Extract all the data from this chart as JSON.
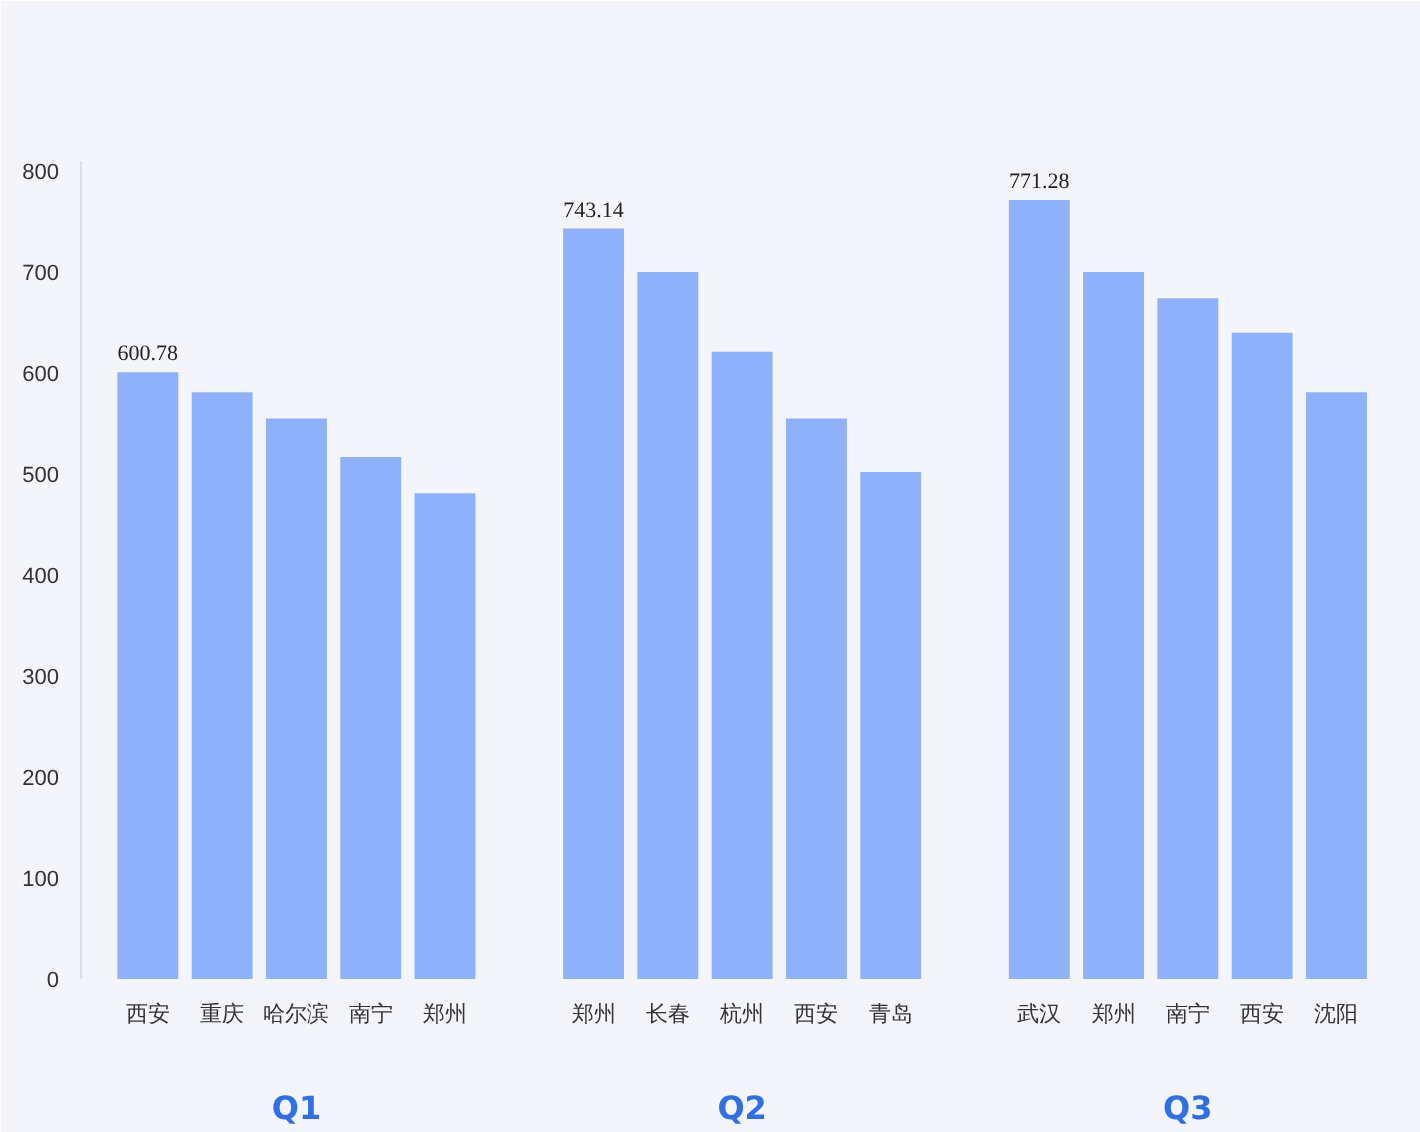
{
  "chart_data": {
    "type": "bar",
    "categories": [
      "西安",
      "重庆",
      "哈尔滨",
      "南宁",
      "郑州",
      null,
      "郑州",
      "长春",
      "杭州",
      "西安",
      "青岛",
      null,
      "武汉",
      "郑州",
      "南宁",
      "西安",
      "沈阳"
    ],
    "values": [
      600.78,
      581,
      555,
      517,
      481,
      null,
      743.14,
      700,
      621,
      555,
      502,
      null,
      771.28,
      700,
      674,
      640,
      581
    ],
    "value_labels": [
      "600.78",
      null,
      null,
      null,
      null,
      null,
      "743.14",
      null,
      null,
      null,
      null,
      null,
      "771.28",
      null,
      null,
      null,
      null
    ],
    "color": "#8fb0fa",
    "ylim": [
      0,
      810
    ],
    "yticks": [
      0,
      100,
      200,
      300,
      400,
      500,
      600,
      700,
      800
    ],
    "grid": false,
    "annotations": [
      "Q1",
      "Q2",
      "Q3"
    ]
  }
}
